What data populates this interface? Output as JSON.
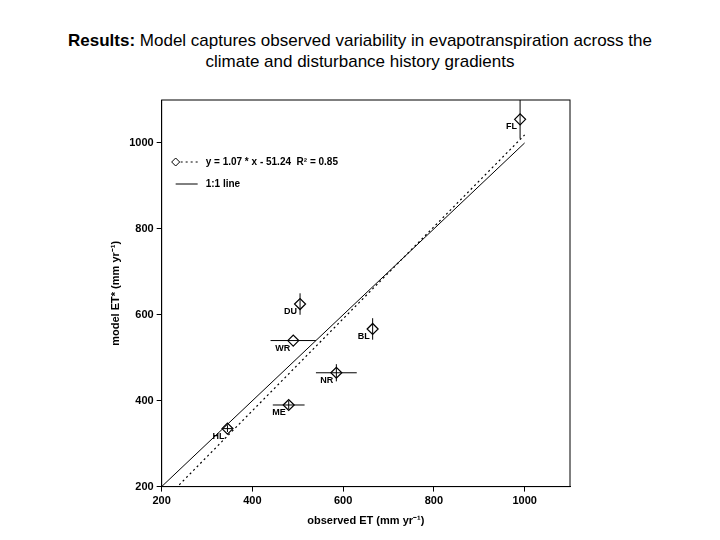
{
  "chart_data": {
    "type": "scatter",
    "title": "Results: Model captures observed variability in evapotranspiration across the climate and disturbance history gradients",
    "x_label": "observed ET (mm yr⁻¹)",
    "y_label": "model ET* (mm yr⁻¹)",
    "xlim": [
      200,
      1100
    ],
    "ylim": [
      200,
      1100
    ],
    "xticks": [
      200,
      400,
      600,
      800,
      1000
    ],
    "yticks": [
      200,
      400,
      600,
      800,
      1000
    ],
    "grid": false,
    "series": [
      {
        "name": "y = 1.07 * x - 51.24  R² = 0.85",
        "color": "#000000",
        "marker": "diamond",
        "line_style": "dotted",
        "labels": [
          "FL",
          "DU",
          "WR",
          "BL",
          "NR",
          "ME",
          "HL"
        ],
        "x": [
          990,
          505,
          490,
          665,
          585,
          480,
          345
        ],
        "values": [
          1055,
          625,
          540,
          567,
          465,
          390,
          335
        ],
        "x_err": [
          0,
          0,
          50,
          0,
          45,
          35,
          10
        ],
        "y_err": [
          45,
          25,
          0,
          25,
          20,
          10,
          8
        ],
        "fit": {
          "slope": 1.07,
          "intercept": -51.24,
          "x": [
            200,
            1000
          ]
        }
      },
      {
        "name": "1:1 line",
        "color": "#000000",
        "line_style": "solid",
        "x": [
          200,
          1000
        ],
        "values": [
          200,
          1000
        ]
      }
    ]
  }
}
